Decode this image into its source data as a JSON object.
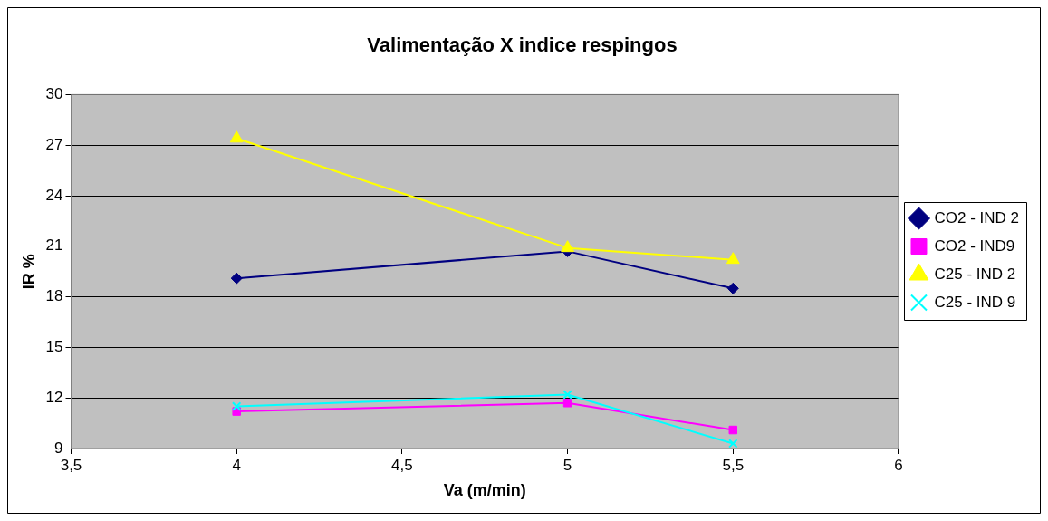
{
  "chart_data": {
    "type": "line",
    "title": "Valimentação X indice respingos",
    "xlabel": "Va (m/min)",
    "ylabel": "IR %",
    "xlim": [
      3.5,
      6
    ],
    "xticks": [
      {
        "value": 3.5,
        "label": "3,5"
      },
      4,
      {
        "value": 4.5,
        "label": "4,5"
      },
      5,
      {
        "value": 5.5,
        "label": "5,5"
      },
      6
    ],
    "ylim": [
      9,
      30
    ],
    "yticks": [
      9,
      12,
      15,
      18,
      21,
      24,
      27,
      30
    ],
    "grid": "y",
    "legend": "right",
    "series": [
      {
        "name": "CO2 - IND 2",
        "color": "#000080",
        "marker": "diamond",
        "x": [
          4,
          5,
          5.5
        ],
        "values": [
          19.1,
          20.7,
          18.5
        ]
      },
      {
        "name": "CO2 - IND9",
        "color": "#ff00ff",
        "marker": "square",
        "x": [
          4,
          5,
          5.5
        ],
        "values": [
          11.2,
          11.7,
          10.1
        ]
      },
      {
        "name": "C25 - IND 2",
        "color": "#ffff00",
        "marker": "triangle",
        "x": [
          4,
          5,
          5.5
        ],
        "values": [
          27.4,
          20.9,
          20.2
        ]
      },
      {
        "name": "C25 - IND 9",
        "color": "#00ffff",
        "marker": "cross",
        "x": [
          4,
          5,
          5.5
        ],
        "values": [
          11.5,
          12.2,
          9.3
        ]
      }
    ]
  }
}
